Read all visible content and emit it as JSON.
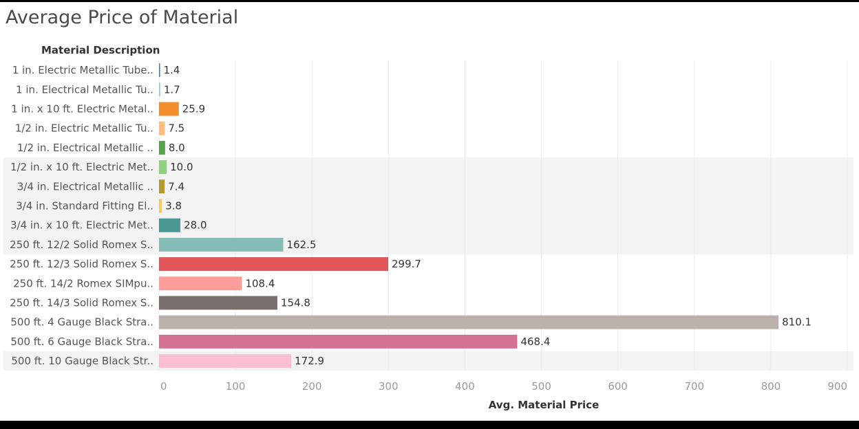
{
  "chart_data": {
    "type": "bar",
    "orientation": "horizontal",
    "title": "Average Price of Material",
    "row_header": "Material Description",
    "xlabel": "Avg. Material Price",
    "xlim": [
      0,
      900
    ],
    "x_ticks": [
      "0",
      "100",
      "200",
      "300",
      "400",
      "500",
      "600",
      "700",
      "800",
      "900"
    ],
    "grid": true,
    "categories": [
      "1 in. Electric Metallic Tube..",
      "1 in. Electrical Metallic Tu..",
      "1 in. x 10 ft. Electric Metal..",
      "1/2 in. Electric Metallic Tu..",
      "1/2 in. Electrical Metallic ..",
      "1/2 in. x 10 ft. Electric Met..",
      "3/4 in. Electrical Metallic ..",
      "3/4 in. Standard Fitting El..",
      "3/4 in. x 10 ft. Electric Met..",
      "250 ft. 12/2 Solid Romex S..",
      "250 ft. 12/3 Solid Romex S..",
      "250 ft. 14/2 Romex SIMpu..",
      "250 ft. 14/3 Solid Romex S..",
      "500 ft. 4 Gauge Black Stra..",
      "500 ft. 6 Gauge Black Stra..",
      "500 ft. 10 Gauge Black Str.."
    ],
    "values": [
      1.4,
      1.7,
      25.9,
      7.5,
      8.0,
      10.0,
      7.4,
      3.8,
      28.0,
      162.5,
      299.7,
      108.4,
      154.8,
      810.1,
      468.4,
      172.9
    ],
    "value_labels": [
      "1.4",
      "1.7",
      "25.9",
      "7.5",
      "8.0",
      "10.0",
      "7.4",
      "3.8",
      "28.0",
      "162.5",
      "299.7",
      "108.4",
      "154.8",
      "810.1",
      "468.4",
      "172.9"
    ],
    "colors": [
      "#4e79a7",
      "#a0cbe8",
      "#f28e2b",
      "#ffbe7d",
      "#59a14f",
      "#8cd17d",
      "#b6992d",
      "#f1ce63",
      "#499894",
      "#86bcb6",
      "#e15759",
      "#ff9d9a",
      "#79706e",
      "#bab0ac",
      "#d37295",
      "#fabfd2"
    ]
  }
}
